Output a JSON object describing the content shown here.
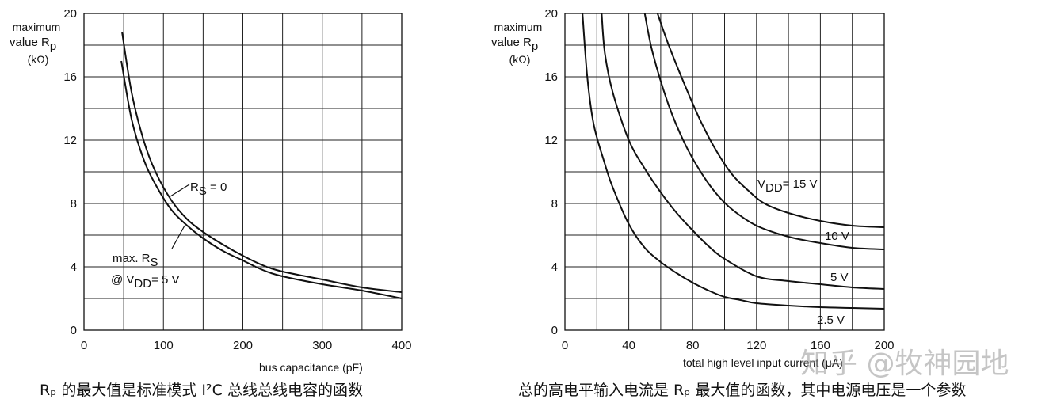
{
  "chart_data": [
    {
      "type": "line",
      "title": "",
      "ylabel": [
        "maximum",
        "value R",
        "p",
        "(kΩ)"
      ],
      "xlabel": "bus capacitance (pF)",
      "xlim": [
        0,
        400
      ],
      "ylim": [
        0,
        20
      ],
      "x_ticks": [
        "0",
        "100",
        "200",
        "300",
        "400"
      ],
      "y_ticks": [
        "0",
        "4",
        "8",
        "12",
        "16",
        "20"
      ],
      "grid": true,
      "series": [
        {
          "name": "R_S = 0",
          "x": [
            48,
            60,
            75,
            90,
            110,
            130,
            150,
            175,
            200,
            225,
            250,
            300,
            350,
            400
          ],
          "y": [
            18.8,
            15.0,
            12.0,
            10.0,
            8.2,
            7.0,
            6.2,
            5.4,
            4.7,
            4.1,
            3.7,
            3.2,
            2.7,
            2.4
          ]
        },
        {
          "name": "max. R_S @ V_DD = 5 V",
          "x": [
            47,
            60,
            75,
            90,
            110,
            130,
            150,
            175,
            200,
            225,
            250,
            300,
            350,
            400
          ],
          "y": [
            17.0,
            13.3,
            10.8,
            9.2,
            7.6,
            6.6,
            5.8,
            5.0,
            4.4,
            3.8,
            3.4,
            2.9,
            2.5,
            2.0
          ]
        }
      ],
      "annotations": [
        {
          "main": "R",
          "sub": "S",
          "rest": " = 0"
        },
        {
          "main": "max. R",
          "sub": "S"
        },
        {
          "main": "@ V",
          "sub": "DD",
          "rest": "= 5 V"
        }
      ]
    },
    {
      "type": "line",
      "title": "",
      "ylabel": [
        "maximum",
        "value R",
        "p",
        "(kΩ)"
      ],
      "xlabel": "total high level input current (μA)",
      "xlim": [
        0,
        200
      ],
      "ylim": [
        0,
        20
      ],
      "x_ticks": [
        "0",
        "40",
        "80",
        "120",
        "160",
        "200"
      ],
      "y_ticks": [
        "0",
        "4",
        "8",
        "12",
        "16",
        "20"
      ],
      "grid": true,
      "series": [
        {
          "name": "V_DD = 15 V",
          "x": [
            58,
            65,
            75,
            85,
            95,
            105,
            115,
            125,
            140,
            160,
            180,
            200
          ],
          "y": [
            20,
            18,
            15.5,
            13.2,
            11.3,
            9.8,
            8.8,
            8.0,
            7.4,
            6.9,
            6.6,
            6.5
          ]
        },
        {
          "name": "10 V",
          "x": [
            50,
            55,
            65,
            75,
            85,
            95,
            105,
            120,
            140,
            160,
            180,
            200
          ],
          "y": [
            20,
            17.5,
            14.2,
            11.8,
            10.0,
            8.6,
            7.6,
            6.6,
            5.9,
            5.5,
            5.2,
            5.1
          ]
        },
        {
          "name": "5 V",
          "x": [
            23,
            25,
            30,
            40,
            50,
            60,
            70,
            80,
            90,
            100,
            120,
            140,
            160,
            180,
            200
          ],
          "y": [
            20,
            17.5,
            15.0,
            12.0,
            10.2,
            8.7,
            7.4,
            6.3,
            5.3,
            4.5,
            3.4,
            3.1,
            2.9,
            2.7,
            2.6
          ]
        },
        {
          "name": "2.5 V",
          "x": [
            11,
            14,
            18,
            25,
            30,
            40,
            50,
            60,
            70,
            80,
            90,
            100,
            110,
            120,
            140,
            160,
            180,
            200
          ],
          "y": [
            20,
            16.0,
            13.0,
            10.5,
            9.0,
            6.7,
            5.2,
            4.3,
            3.6,
            3.0,
            2.5,
            2.1,
            1.9,
            1.7,
            1.55,
            1.45,
            1.4,
            1.35
          ]
        }
      ],
      "annotations": [
        {
          "main": "V",
          "sub": "DD",
          "rest": "= 15 V"
        },
        {
          "main": "10 V"
        },
        {
          "main": "5 V"
        },
        {
          "main": "2.5 V"
        }
      ]
    }
  ],
  "captions": {
    "left": "Rₚ 的最大值是标准模式 I²C 总线总线电容的函数",
    "right": "总的高电平输入电流是 Rₚ 最大值的函数，其中电源电压是一个参数"
  },
  "watermark": "知乎 @牧神园地"
}
